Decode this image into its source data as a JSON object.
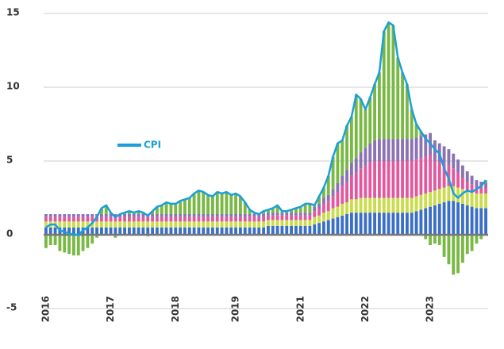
{
  "chart_data": {
    "type": "bar",
    "stacked": true,
    "categories": [
      "2016",
      null,
      null,
      null,
      null,
      null,
      null,
      null,
      null,
      null,
      null,
      null,
      null,
      null,
      "2017",
      null,
      null,
      null,
      null,
      null,
      null,
      null,
      null,
      null,
      null,
      null,
      null,
      null,
      "2018",
      null,
      null,
      null,
      null,
      null,
      null,
      null,
      null,
      null,
      null,
      null,
      null,
      "2019",
      null,
      null,
      null,
      null,
      null,
      null,
      null,
      null,
      null,
      null,
      null,
      null,
      null,
      "2021",
      null,
      null,
      null,
      null,
      null,
      null,
      null,
      null,
      null,
      null,
      null,
      null,
      null,
      "2022",
      null,
      null,
      null,
      null,
      null,
      null,
      null,
      null,
      null,
      null,
      null,
      null,
      null,
      "2023",
      null,
      null,
      null,
      null,
      null,
      null,
      null,
      null,
      null,
      null,
      null,
      null
    ],
    "series": [
      {
        "color": "#3b6fc6",
        "values": [
          0.5,
          0.5,
          0.5,
          0.5,
          0.5,
          0.5,
          0.5,
          0.5,
          0.5,
          0.5,
          0.5,
          0.5,
          0.5,
          0.5,
          0.5,
          0.5,
          0.5,
          0.5,
          0.5,
          0.5,
          0.5,
          0.5,
          0.5,
          0.5,
          0.5,
          0.5,
          0.5,
          0.5,
          0.5,
          0.5,
          0.5,
          0.5,
          0.5,
          0.5,
          0.5,
          0.5,
          0.5,
          0.5,
          0.5,
          0.5,
          0.5,
          0.5,
          0.5,
          0.5,
          0.5,
          0.5,
          0.5,
          0.5,
          0.6,
          0.6,
          0.6,
          0.6,
          0.6,
          0.6,
          0.6,
          0.6,
          0.6,
          0.6,
          0.7,
          0.8,
          0.9,
          1.0,
          1.1,
          1.2,
          1.3,
          1.4,
          1.5,
          1.5,
          1.5,
          1.5,
          1.5,
          1.5,
          1.5,
          1.5,
          1.5,
          1.5,
          1.5,
          1.5,
          1.5,
          1.5,
          1.6,
          1.7,
          1.8,
          1.9,
          2.0,
          2.1,
          2.2,
          2.3,
          2.3,
          2.2,
          2.1,
          2.0,
          1.9,
          1.8,
          1.8,
          1.8
        ]
      },
      {
        "color": "#c9dc4c",
        "values": [
          0.4,
          0.4,
          0.4,
          0.4,
          0.4,
          0.4,
          0.4,
          0.4,
          0.4,
          0.4,
          0.4,
          0.4,
          0.4,
          0.4,
          0.4,
          0.4,
          0.4,
          0.4,
          0.4,
          0.4,
          0.4,
          0.4,
          0.4,
          0.4,
          0.4,
          0.4,
          0.4,
          0.4,
          0.4,
          0.4,
          0.4,
          0.4,
          0.4,
          0.4,
          0.4,
          0.4,
          0.4,
          0.4,
          0.4,
          0.4,
          0.4,
          0.4,
          0.4,
          0.4,
          0.4,
          0.4,
          0.4,
          0.4,
          0.4,
          0.4,
          0.4,
          0.4,
          0.4,
          0.4,
          0.4,
          0.4,
          0.4,
          0.4,
          0.5,
          0.5,
          0.6,
          0.6,
          0.7,
          0.7,
          0.8,
          0.8,
          0.9,
          0.9,
          1.0,
          1.0,
          1.0,
          1.0,
          1.0,
          1.0,
          1.0,
          1.0,
          1.0,
          1.0,
          1.0,
          1.0,
          1.0,
          1.0,
          1.0,
          1.0,
          1.0,
          1.0,
          1.0,
          1.0,
          1.0,
          1.0,
          1.0,
          1.0,
          1.0,
          1.0,
          1.0,
          1.0
        ]
      },
      {
        "color": "#e3589d",
        "values": [
          0.3,
          0.3,
          0.3,
          0.3,
          0.3,
          0.3,
          0.3,
          0.3,
          0.3,
          0.3,
          0.3,
          0.3,
          0.3,
          0.3,
          0.3,
          0.3,
          0.3,
          0.3,
          0.3,
          0.3,
          0.3,
          0.3,
          0.3,
          0.3,
          0.3,
          0.3,
          0.3,
          0.3,
          0.3,
          0.3,
          0.3,
          0.3,
          0.3,
          0.3,
          0.3,
          0.3,
          0.3,
          0.3,
          0.3,
          0.3,
          0.3,
          0.3,
          0.3,
          0.3,
          0.3,
          0.3,
          0.3,
          0.3,
          0.3,
          0.3,
          0.3,
          0.3,
          0.3,
          0.3,
          0.3,
          0.3,
          0.3,
          0.3,
          0.4,
          0.5,
          0.6,
          0.7,
          0.8,
          1.0,
          1.2,
          1.4,
          1.6,
          1.8,
          2.0,
          2.2,
          2.4,
          2.5,
          2.5,
          2.5,
          2.5,
          2.5,
          2.5,
          2.5,
          2.5,
          2.5,
          2.5,
          2.5,
          2.5,
          2.5,
          2.0,
          1.8,
          1.6,
          1.4,
          1.2,
          1.0,
          0.8,
          0.6,
          0.5,
          0.4,
          0.4,
          0.4
        ]
      },
      {
        "color": "#8b72b3",
        "values": [
          0.2,
          0.2,
          0.2,
          0.2,
          0.2,
          0.2,
          0.2,
          0.2,
          0.2,
          0.2,
          0.2,
          0.2,
          0.2,
          0.2,
          0.2,
          0.2,
          0.2,
          0.2,
          0.2,
          0.2,
          0.2,
          0.2,
          0.2,
          0.2,
          0.2,
          0.2,
          0.2,
          0.2,
          0.2,
          0.2,
          0.2,
          0.2,
          0.2,
          0.2,
          0.2,
          0.2,
          0.2,
          0.2,
          0.2,
          0.2,
          0.2,
          0.2,
          0.2,
          0.2,
          0.2,
          0.2,
          0.2,
          0.2,
          0.2,
          0.2,
          0.2,
          0.2,
          0.2,
          0.2,
          0.2,
          0.2,
          0.2,
          0.2,
          0.3,
          0.3,
          0.4,
          0.4,
          0.5,
          0.6,
          0.7,
          0.8,
          0.9,
          1.0,
          1.1,
          1.2,
          1.3,
          1.4,
          1.5,
          1.5,
          1.5,
          1.5,
          1.5,
          1.5,
          1.5,
          1.5,
          1.5,
          1.5,
          1.5,
          1.5,
          1.4,
          1.3,
          1.2,
          1.1,
          1.0,
          0.9,
          0.8,
          0.7,
          0.6,
          0.5,
          0.4,
          0.3
        ]
      },
      {
        "color": "#7ab845",
        "values": [
          -0.9,
          -0.7,
          -0.7,
          -1.1,
          -1.2,
          -1.3,
          -1.4,
          -1.4,
          -1.1,
          -0.9,
          -0.6,
          -0.2,
          0.4,
          0.6,
          0.1,
          -0.2,
          0.0,
          0.1,
          0.2,
          0.1,
          0.2,
          0.1,
          -0.1,
          0.2,
          0.5,
          0.6,
          0.8,
          0.7,
          0.7,
          0.9,
          1.0,
          1.1,
          1.4,
          1.6,
          1.5,
          1.3,
          1.2,
          1.5,
          1.4,
          1.5,
          1.3,
          1.4,
          1.2,
          0.8,
          0.3,
          0.1,
          0.0,
          0.2,
          0.2,
          0.3,
          0.5,
          0.1,
          0.1,
          0.2,
          0.3,
          0.4,
          0.6,
          0.6,
          0.1,
          0.5,
          0.7,
          1.3,
          2.2,
          2.7,
          2.4,
          3.0,
          3.1,
          4.3,
          3.6,
          2.6,
          3.1,
          3.8,
          4.5,
          7.3,
          7.9,
          7.7,
          5.5,
          4.5,
          3.7,
          2.0,
          0.9,
          0.3,
          -0.3,
          -0.7,
          -0.6,
          -0.7,
          -1.5,
          -2.0,
          -2.7,
          -2.6,
          -1.9,
          -1.3,
          -1.1,
          -0.6,
          -0.3,
          0.2
        ]
      },
      {
        "name": "CPI",
        "type": "line",
        "color": "#1a9fd9",
        "values": [
          0.5,
          0.7,
          0.7,
          0.3,
          0.2,
          0.1,
          0.0,
          0.0,
          0.3,
          0.5,
          0.8,
          1.2,
          1.8,
          2.0,
          1.5,
          1.2,
          1.4,
          1.5,
          1.6,
          1.5,
          1.6,
          1.5,
          1.3,
          1.6,
          1.9,
          2.0,
          2.2,
          2.1,
          2.1,
          2.3,
          2.4,
          2.5,
          2.8,
          3.0,
          2.9,
          2.7,
          2.6,
          2.9,
          2.8,
          2.9,
          2.7,
          2.8,
          2.6,
          2.2,
          1.7,
          1.5,
          1.4,
          1.6,
          1.7,
          1.8,
          2.0,
          1.6,
          1.6,
          1.7,
          1.8,
          1.9,
          2.1,
          2.1,
          2.0,
          2.6,
          3.2,
          4.0,
          5.3,
          6.2,
          6.4,
          7.4,
          8.0,
          9.5,
          9.2,
          8.5,
          9.3,
          10.2,
          11.0,
          13.8,
          14.4,
          14.2,
          12.0,
          11.0,
          10.2,
          8.5,
          7.5,
          7.0,
          6.5,
          6.2,
          5.8,
          5.5,
          4.5,
          3.8,
          2.8,
          2.5,
          2.8,
          3.0,
          2.9,
          3.1,
          3.3,
          3.7
        ]
      }
    ],
    "ylim": [
      -5,
      15
    ],
    "yticks": [
      -5,
      0,
      5,
      10,
      15
    ],
    "grid": true
  }
}
